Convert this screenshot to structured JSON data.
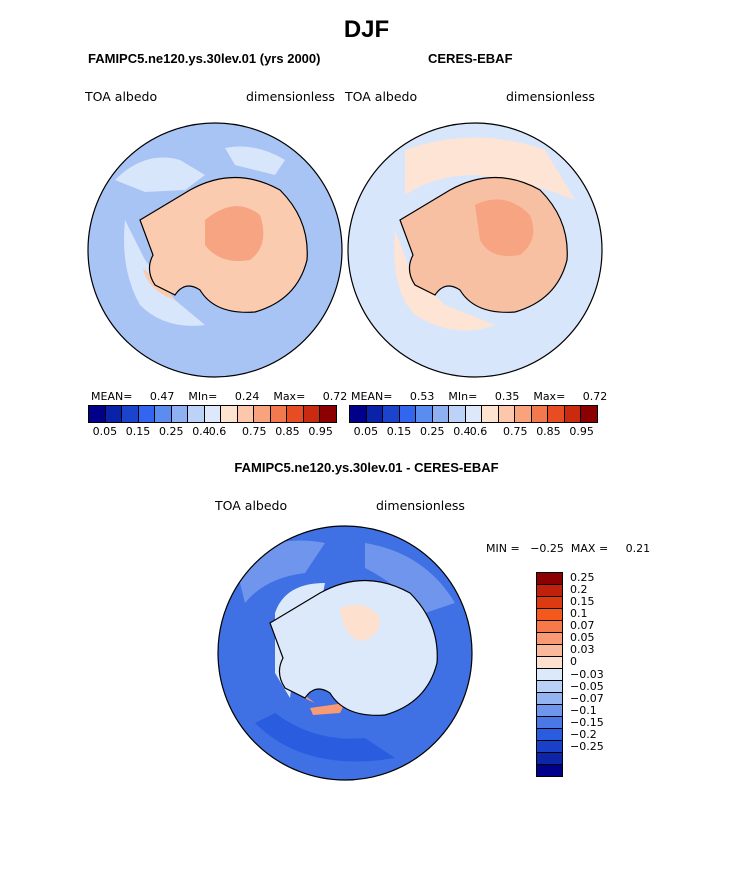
{
  "season_title": "DJF",
  "panels": [
    {
      "title": "FAMIPC5.ne120.ys.30lev.01 (yrs 2000)",
      "left_label": "TOA albedo",
      "right_label": "dimensionless",
      "stats": {
        "mean_label": "MEAN=",
        "mean": "0.47",
        "min_label": "MIn=",
        "min": "0.24",
        "max_label": "Max=",
        "max": "0.72"
      }
    },
    {
      "title": "CERES-EBAF",
      "left_label": "TOA albedo",
      "right_label": "dimensionless",
      "stats": {
        "mean_label": "MEAN=",
        "mean": "0.53",
        "min_label": "MIn=",
        "min": "0.35",
        "max_label": "Max=",
        "max": "0.72"
      }
    }
  ],
  "abs_colorbar": {
    "colors": [
      "#00008b",
      "#0a22a8",
      "#1a44cc",
      "#3366ee",
      "#5b8cf0",
      "#8fb0f3",
      "#bcd2f7",
      "#dde9fb",
      "#ffe3d1",
      "#fcc7aa",
      "#f8a37c",
      "#f2794e",
      "#e84c23",
      "#c92a10",
      "#8b0000"
    ],
    "tick_labels": [
      "0.05",
      "0.15",
      "0.25",
      "0.4",
      "0.6",
      "0.75",
      "0.85",
      "0.95"
    ]
  },
  "diff_panel": {
    "title": "FAMIPC5.ne120.ys.30lev.01 - CERES-EBAF",
    "left_label": "TOA albedo",
    "right_label": "dimensionless",
    "min_label": "MIN =",
    "min": "−0.25",
    "max_label": "MAX =",
    "max": "0.21"
  },
  "diff_colorbar": {
    "colors": [
      "#8b0000",
      "#c1200c",
      "#de3a12",
      "#f4581d",
      "#f7794a",
      "#f99a74",
      "#fbb99c",
      "#fde0cd",
      "#dce9fb",
      "#b8cff6",
      "#93b3f1",
      "#6f96ec",
      "#4a78e6",
      "#2a5ce0",
      "#1a40c8",
      "#0d26a8",
      "#00008b"
    ],
    "tick_labels": [
      "0.25",
      "0.2",
      "0.15",
      "0.1",
      "0.07",
      "0.05",
      "0.03",
      "0",
      "−0.03",
      "−0.05",
      "−0.07",
      "−0.1",
      "−0.15",
      "−0.2",
      "−0.25"
    ]
  },
  "map_colors": {
    "ocean_model": "#a8c4f5",
    "ocean_obs": "#d8e6fb",
    "land_model": "#fbcbb0",
    "land_obs": "#f8c0a2",
    "interior": "#f6a482",
    "diff_ocean": "#3f70e4",
    "diff_ice": "#dce9fb",
    "diff_warm": "#f89a74"
  }
}
